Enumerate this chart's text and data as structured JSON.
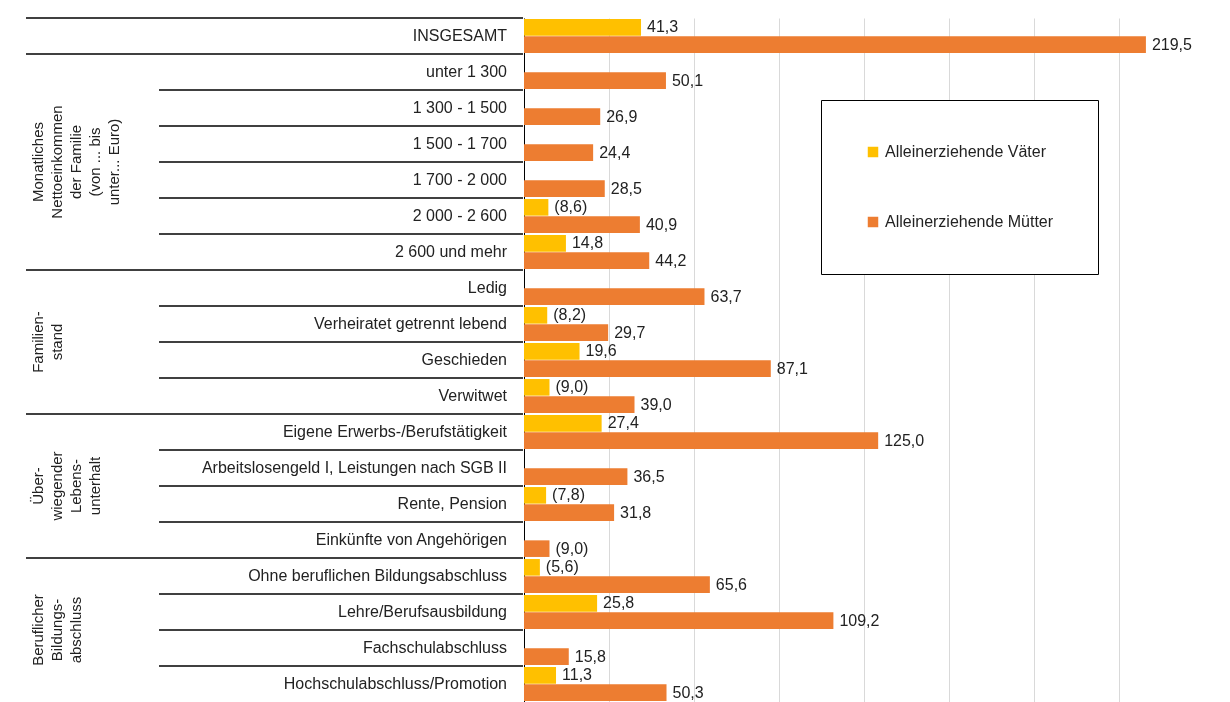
{
  "chart_data": {
    "type": "bar",
    "orientation": "horizontal",
    "categories": [
      "INSGESAMT",
      "unter 1 300",
      "1 300 - 1 500",
      "1 500 - 1 700",
      "1 700 - 2 000",
      "2 000 - 2 600",
      "2 600 und mehr",
      "Ledig",
      "Verheiratet getrennt lebend",
      "Geschieden",
      "Verwitwet",
      "Eigene Erwerbs-/Berufstätigkeit",
      "Arbeitslosengeld I, Leistungen nach SGB II",
      "Rente, Pension",
      "Einkünfte von Angehörigen",
      "Ohne beruflichen Bildungsabschluss",
      "Lehre/Berufsausbildung",
      "Fachschulabschluss",
      "Hochschulabschluss/Promotion"
    ],
    "series": [
      {
        "name": "Alleinerziehende Väter",
        "color": "#ffc000",
        "values": [
          41.3,
          null,
          null,
          null,
          null,
          8.6,
          14.8,
          null,
          8.2,
          19.6,
          9.0,
          27.4,
          null,
          7.8,
          null,
          5.6,
          25.8,
          null,
          11.3
        ],
        "value_labels": [
          "41,3",
          null,
          null,
          null,
          null,
          "(8,6)",
          "14,8",
          null,
          "(8,2)",
          "19,6",
          "(9,0)",
          "27,4",
          null,
          "(7,8)",
          null,
          "(5,6)",
          "25,8",
          null,
          "11,3"
        ]
      },
      {
        "name": "Alleinerziehende Mütter",
        "color": "#ed7d31",
        "values": [
          219.5,
          50.1,
          26.9,
          24.4,
          28.5,
          40.9,
          44.2,
          63.7,
          29.7,
          87.1,
          39.0,
          125.0,
          36.5,
          31.8,
          9.0,
          65.6,
          109.2,
          15.8,
          50.3
        ],
        "value_labels": [
          "219,5",
          "50,1",
          "26,9",
          "24,4",
          "28,5",
          "40,9",
          "44,2",
          "63,7",
          "29,7",
          "87,1",
          "39,0",
          "125,0",
          "36,5",
          "31,8",
          "(9,0)",
          "65,6",
          "109,2",
          "15,8",
          "50,3"
        ]
      }
    ],
    "xlim": [
      0,
      240
    ],
    "xticks": [
      {
        "value": 0,
        "label": null
      },
      {
        "value": 30,
        "label": null
      },
      {
        "value": 60,
        "label": null
      },
      {
        "value": 90,
        "label": null
      },
      {
        "value": 120,
        "label": null
      },
      {
        "value": 150,
        "label": null
      },
      {
        "value": 180,
        "label": null
      },
      {
        "value": 210,
        "label": null
      },
      {
        "value": 240,
        "label": null
      }
    ],
    "grid": "x",
    "legend": "top right",
    "annotations": [
      "Monatliches\nNettoeinkommen\nder Familie\n(von ... bis\nunter... Euro)",
      "Familien-\nstand",
      "Über-\nwiegender\nLebens-\nunterhalt",
      "Beruflicher\nBildungs-\nabschluss"
    ]
  }
}
